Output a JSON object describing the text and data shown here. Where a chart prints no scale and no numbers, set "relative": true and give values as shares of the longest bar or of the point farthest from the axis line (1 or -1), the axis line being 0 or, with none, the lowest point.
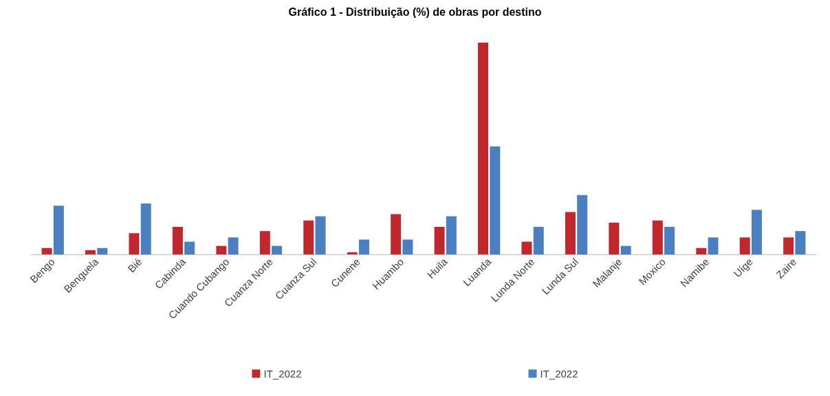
{
  "chart_data": {
    "type": "bar",
    "title": "Gráfico 1 - Distribuição (%) de obras por destino",
    "relative": true,
    "categories": [
      "Bengo",
      "Benguela",
      "Bié",
      "Cabinda",
      "Cuando Cubango",
      "Cuanza Norte",
      "Cuanza Sul",
      "Cunene",
      "Huambo",
      "Huila",
      "Luanda",
      "Lunda Norte",
      "Lunda Sul",
      "Malanje",
      "Moxico",
      "Namibe",
      "Uíge",
      "Zaire"
    ],
    "series": [
      {
        "name": "IT_2022",
        "color": "#c0282d",
        "values": [
          0.03,
          0.02,
          0.1,
          0.13,
          0.04,
          0.11,
          0.16,
          0.01,
          0.19,
          0.13,
          1,
          0.06,
          0.2,
          0.15,
          0.16,
          0.03,
          0.08,
          0.08
        ]
      },
      {
        "name": "IT_2022",
        "color": "#4a7fc1",
        "values": [
          0.23,
          0.03,
          0.24,
          0.06,
          0.08,
          0.04,
          0.18,
          0.07,
          0.07,
          0.18,
          0.51,
          0.13,
          0.28,
          0.04,
          0.13,
          0.08,
          0.21,
          0.11
        ]
      }
    ],
    "legend": "bottom"
  }
}
